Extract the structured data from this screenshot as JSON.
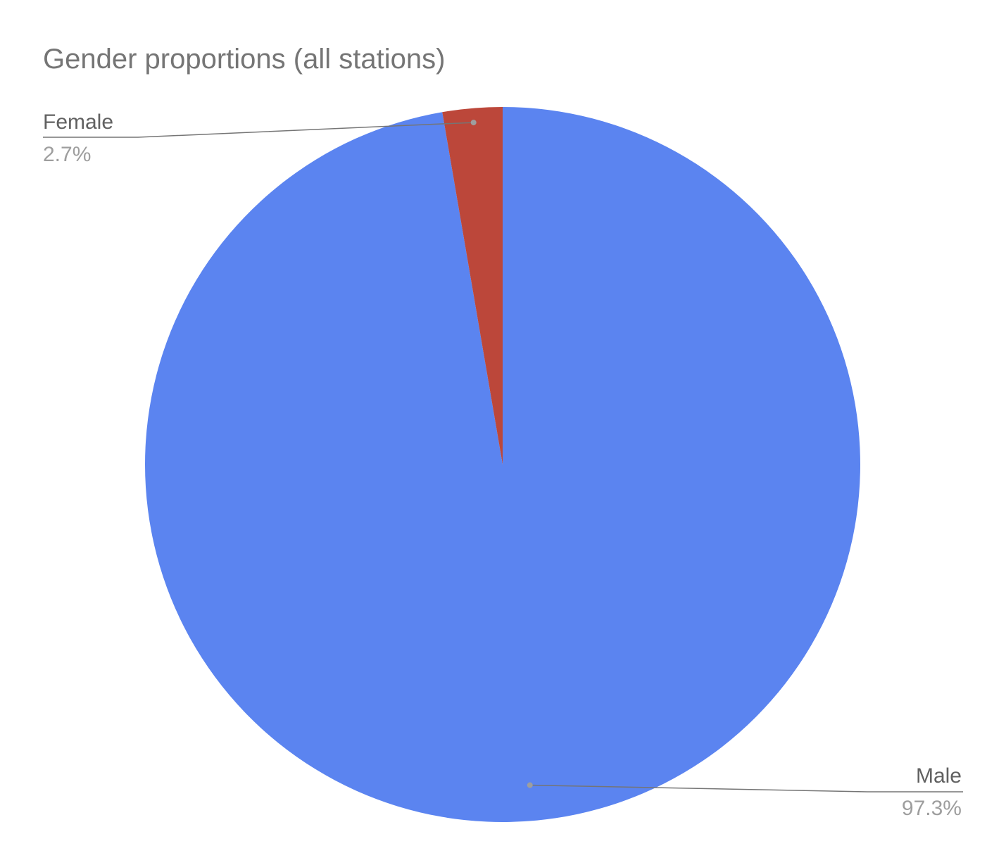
{
  "chart_data": {
    "type": "pie",
    "title": "Gender proportions (all stations)",
    "slices": [
      {
        "label": "Male",
        "value": 97.3,
        "value_label": "97.3%",
        "color": "#5b84f0"
      },
      {
        "label": "Female",
        "value": 2.7,
        "value_label": "2.7%",
        "color": "#bc473a"
      }
    ],
    "legend": "none",
    "slice_labels": "outside with leader lines"
  }
}
